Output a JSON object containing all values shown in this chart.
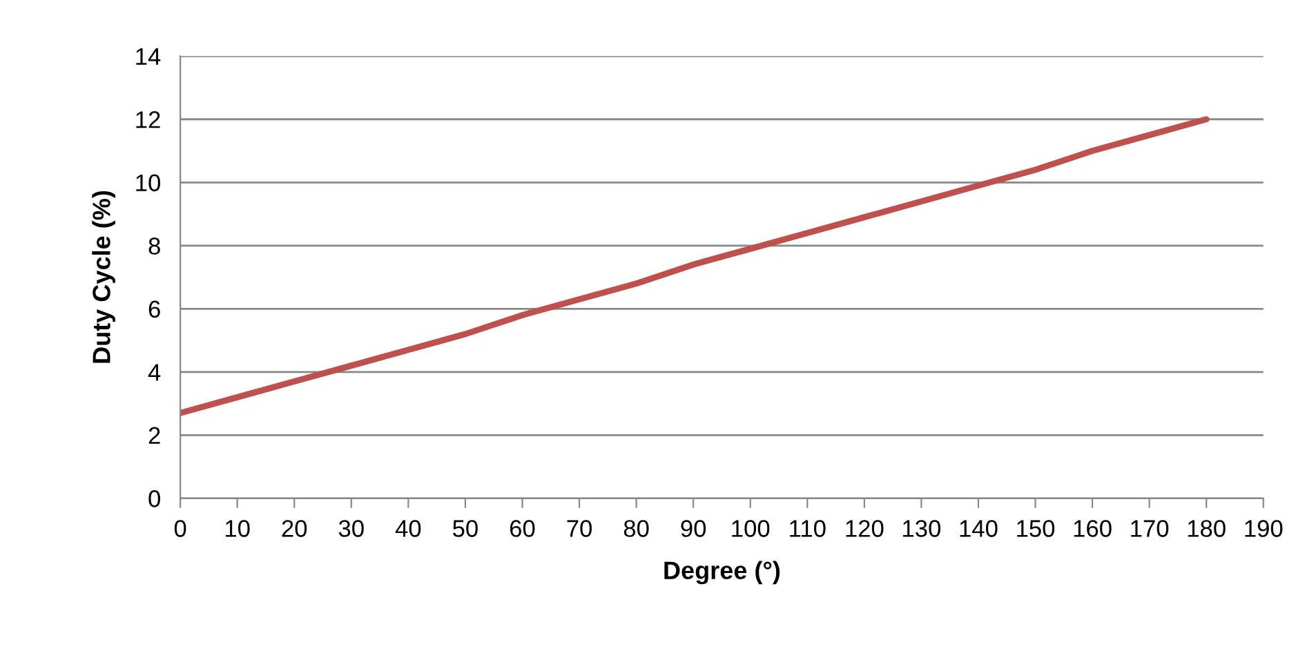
{
  "chart_data": {
    "type": "line",
    "xlabel": "Degree (°)",
    "ylabel": "Duty Cycle (%)",
    "x": [
      0,
      10,
      20,
      30,
      40,
      50,
      60,
      70,
      80,
      90,
      100,
      110,
      120,
      130,
      140,
      150,
      160,
      170,
      180
    ],
    "series": [
      {
        "color": "#c0504d",
        "values": [
          2.7,
          3.2,
          3.7,
          4.2,
          4.7,
          5.2,
          5.8,
          6.3,
          6.8,
          7.4,
          7.9,
          8.4,
          8.9,
          9.4,
          9.9,
          10.4,
          11.0,
          11.5,
          12.0
        ]
      }
    ],
    "xlim": [
      0,
      190
    ],
    "xticks": [
      0,
      10,
      20,
      30,
      40,
      50,
      60,
      70,
      80,
      90,
      100,
      110,
      120,
      130,
      140,
      150,
      160,
      170,
      180,
      190
    ],
    "ylim": [
      0,
      14
    ],
    "yticks": [
      0,
      2,
      4,
      6,
      8,
      10,
      12,
      14
    ],
    "grid": "y",
    "marker": "none",
    "line_style": "solid",
    "legend": false
  }
}
